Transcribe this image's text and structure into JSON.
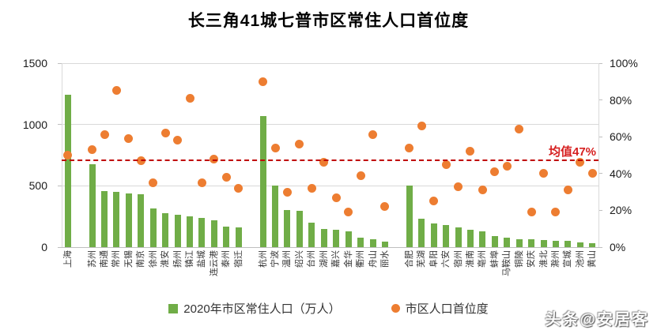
{
  "title": "长三角41城七普市区常住人口首位度",
  "legend": {
    "bar_label": "2020年市区常住人口（万人）",
    "dot_label": "市区人口首位度"
  },
  "mean_line": {
    "label": "均值47%",
    "value": 47
  },
  "watermark": "头条@安居客",
  "colors": {
    "bar": "#70ad47",
    "dot": "#ed7d31",
    "mean_line": "#c00000",
    "mean_label": "#d62020",
    "gridline": "#d9d9d9",
    "axis_text": "#1a1a1a"
  },
  "chart_data": {
    "type": "bar",
    "subtype": "combo-bar-scatter",
    "title": "长三角41城七普市区常住人口首位度",
    "categories": [
      "上海",
      "苏州",
      "南通",
      "常州",
      "无锡",
      "南京",
      "徐州",
      "淮安",
      "扬州",
      "镇江",
      "盐城",
      "连云港",
      "泰州",
      "宿迁",
      "杭州",
      "宁波",
      "温州",
      "绍兴",
      "台州",
      "湖州",
      "嘉兴",
      "金华",
      "衢州",
      "舟山",
      "丽水",
      "合肥",
      "芜湖",
      "阜阳",
      "六安",
      "宿州",
      "淮南",
      "亳州",
      "蚌埠",
      "马鞍山",
      "铜陵",
      "安庆",
      "淮北",
      "滁州",
      "宣城",
      "池州",
      "黄山"
    ],
    "series": [
      {
        "name": "2020年市区常住人口（万人）",
        "type": "bar",
        "axis": "left",
        "values": [
          1240,
          675,
          460,
          450,
          440,
          430,
          315,
          275,
          265,
          250,
          235,
          220,
          170,
          160,
          1070,
          505,
          300,
          295,
          200,
          145,
          143,
          130,
          75,
          65,
          45,
          500,
          230,
          195,
          180,
          160,
          140,
          130,
          90,
          75,
          67,
          67,
          60,
          54,
          49,
          40,
          32
        ]
      },
      {
        "name": "市区人口首位度",
        "type": "scatter",
        "axis": "right",
        "unit": "%",
        "values": [
          50,
          53,
          61,
          85,
          59,
          47,
          35,
          62,
          58,
          81,
          35,
          48,
          38,
          32,
          90,
          54,
          30,
          56,
          32,
          46,
          27,
          19,
          39,
          61,
          22,
          54,
          66,
          25,
          45,
          33,
          52,
          31,
          41,
          44,
          64,
          19,
          40,
          19,
          31,
          46,
          40
        ]
      }
    ],
    "left_axis": {
      "min": 0,
      "max": 1500,
      "ticks": [
        0,
        500,
        1000,
        1500
      ]
    },
    "right_axis": {
      "min": 0,
      "max": 100,
      "tick_step": 20,
      "tick_labels": [
        "0%",
        "20%",
        "40%",
        "60%",
        "80%",
        "100%"
      ]
    },
    "group_gaps_after_index": [
      0,
      13,
      24
    ],
    "mean_value": 47,
    "mean_label": "均值47%",
    "grid": "horizontal-only",
    "legend_position": "bottom"
  }
}
